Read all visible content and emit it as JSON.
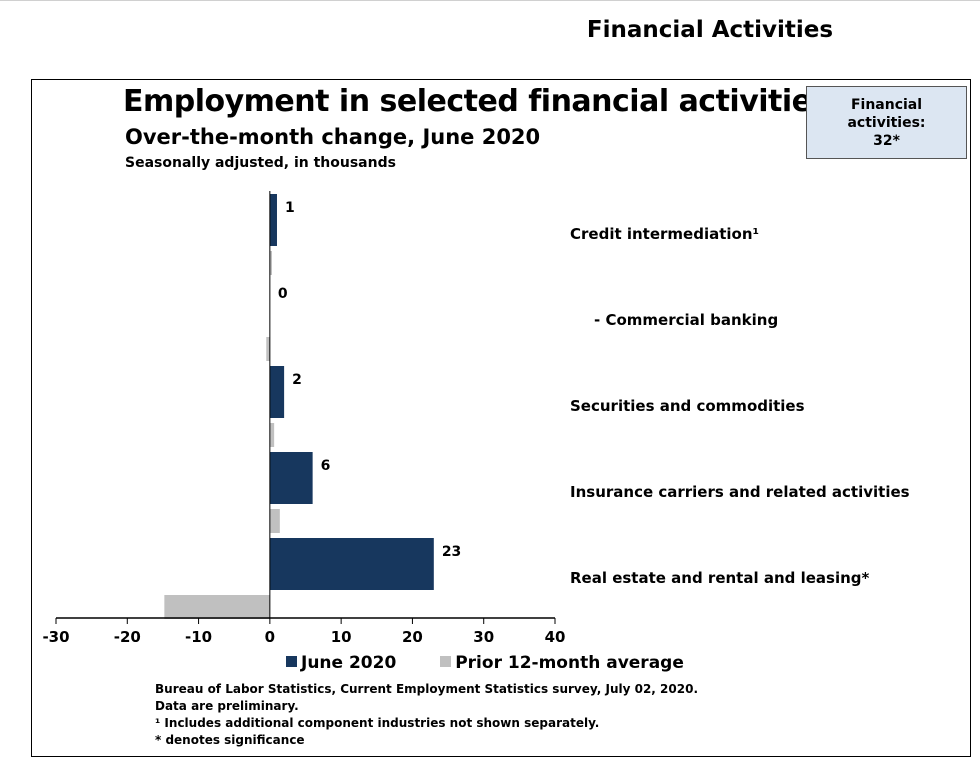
{
  "page": {
    "heading": "Financial Activities"
  },
  "callout": {
    "line1": "Financial",
    "line2": "activities:",
    "line3": "32*"
  },
  "colors": {
    "current": "#17375e",
    "prior": "#c0c0c0"
  },
  "chart_data": {
    "type": "bar",
    "orientation": "horizontal",
    "title": "Employment in selected financial activities",
    "subtitle": "Over-the-month change, June 2020",
    "note": "Seasonally adjusted, in thousands",
    "categories": [
      "Credit intermediation¹",
      "- Commercial banking",
      "Securities and commodities",
      "Insurance carriers and related activities",
      "Real estate and rental and leasing*"
    ],
    "series": [
      {
        "name": "June 2020",
        "values": [
          1,
          0,
          2,
          6,
          23
        ],
        "labels": [
          "1",
          "0",
          "2",
          "6",
          "23"
        ]
      },
      {
        "name": "Prior 12-month average",
        "values": [
          0.3,
          -0.5,
          0.6,
          1.4,
          -14.8
        ]
      }
    ],
    "xlim": [
      -30,
      40
    ],
    "xticks": [
      -30,
      -20,
      -10,
      0,
      10,
      20,
      30,
      40
    ],
    "xtick_labels": [
      "-30",
      "-20",
      "-10",
      "0",
      "10",
      "20",
      "30",
      "40"
    ],
    "grid": false,
    "legend_position": "bottom"
  },
  "footnotes": {
    "source": "Bureau of Labor Statistics, Current Employment Statistics survey, July 02, 2020.",
    "preliminary": "Data are preliminary.",
    "note1": "¹ Includes additional component industries not shown separately.",
    "significance": "* denotes significance"
  }
}
